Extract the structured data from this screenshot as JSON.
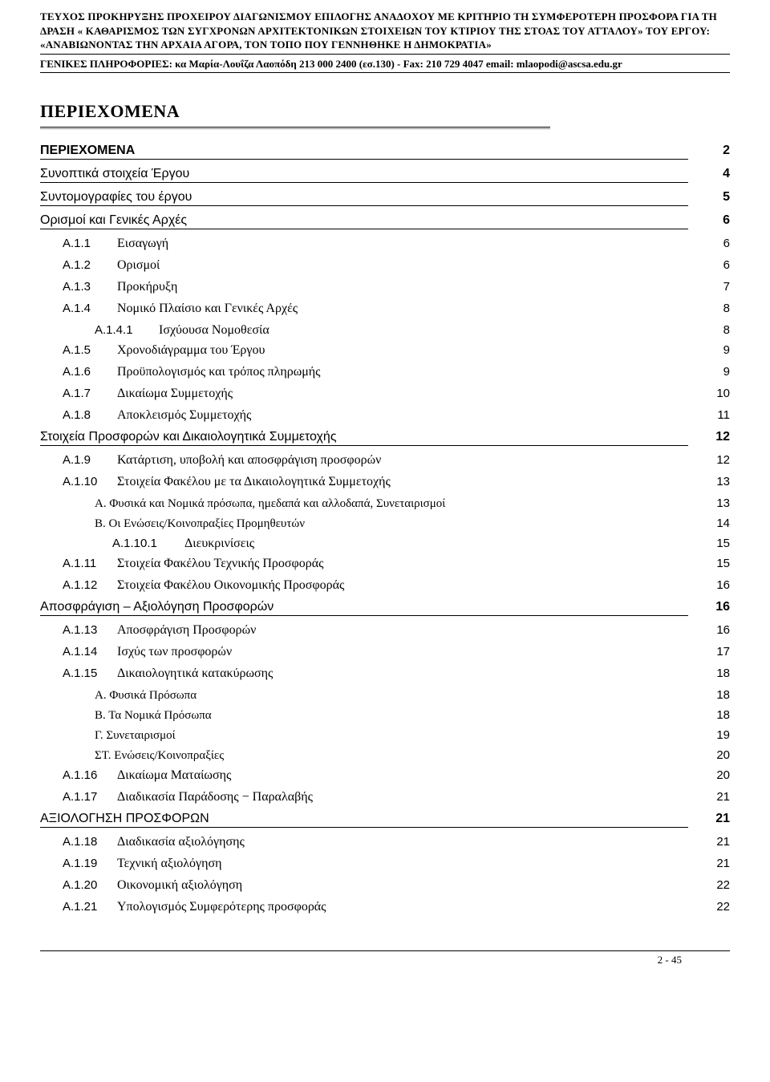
{
  "header": {
    "line1": "ΤΕΥΧΟΣ ΠΡΟΚΗΡΥΞΗΣ ΠΡΟΧΕΙΡΟΥ ΔΙΑΓΩΝΙΣΜΟΥ ΕΠΙΛΟΓΗΣ ΑΝΑΔΟΧΟΥ ΜΕ ΚΡΙΤΗΡΙΟ ΤΗ ΣΥΜΦΕΡΟΤΕΡΗ ΠΡΟΣΦΟΡΑ ΓΙΑ ΤΗ ΔΡΑΣΗ « ΚΑΘΑΡΙΣΜΟΣ ΤΩΝ ΣΥΓΧΡΟΝΩΝ ΑΡΧΙΤΕΚΤΟΝΙΚΩΝ ΣΤΟΙΧΕΙΩΝ  ΤΟΥ ΚΤΙΡΙΟΥ ΤΗΣ ΣΤΟΑΣ ΤΟΥ ΑΤΤΑΛΟΥ» ΤΟΥ ΕΡΓΟΥ:  «ΑΝΑΒΙΩΝΟΝΤΑΣ ΤΗΝ ΑΡΧΑΙΑ ΑΓΟΡΑ, ΤΟΝ ΤΟΠΟ ΠΟΥ ΓΕΝΝΗΘΗΚΕ Η ΔΗΜΟΚΡΑΤΙΑ»",
    "line2": "ΓΕΝΙΚΕΣ ΠΛΗΡΟΦΟΡΙΕΣ: κα Μαρία-Λουΐζα Λαοπόδη 213 000 2400 (εσ.130)  - Fax: 210 729 4047 email: mlaopodi@ascsa.edu.gr"
  },
  "title": "ΠΕΡΙΕΧΟΜΕΝΑ",
  "toc": [
    {
      "lvl": "lvl0 first",
      "num": "",
      "label": "ΠΕΡΙΕΧΟΜΕΝΑ",
      "page": "2"
    },
    {
      "lvl": "lvl0",
      "num": "",
      "label": "Συνοπτικά στοιχεία Έργου",
      "page": "4"
    },
    {
      "lvl": "lvl0",
      "num": "",
      "label": "Συντομογραφίες του έργου",
      "page": "5"
    },
    {
      "lvl": "lvl0",
      "num": "",
      "label": "Ορισμοί και Γενικές Αρχές",
      "page": "6"
    },
    {
      "lvl": "lvl1",
      "num": "Α.1.1",
      "label": "Εισαγωγή",
      "page": "6"
    },
    {
      "lvl": "lvl1",
      "num": "Α.1.2",
      "label": "Ορισμοί",
      "page": "6"
    },
    {
      "lvl": "lvl1",
      "num": "Α.1.3",
      "label": "Προκήρυξη",
      "page": "7"
    },
    {
      "lvl": "lvl1",
      "num": "Α.1.4",
      "label": "Νομικό Πλαίσιο και Γενικές Αρχές",
      "page": "8"
    },
    {
      "lvl": "lvl2",
      "num": "Α.1.4.1",
      "label": "Ισχύουσα Νομοθεσία",
      "page": "8"
    },
    {
      "lvl": "lvl1",
      "num": "Α.1.5",
      "label": "Χρονοδιάγραμμα του Έργου",
      "page": "9"
    },
    {
      "lvl": "lvl1",
      "num": "Α.1.6",
      "label": "Προϋπολογισμός και τρόπος πληρωμής",
      "page": "9"
    },
    {
      "lvl": "lvl1",
      "num": "Α.1.7",
      "label": "Δικαίωμα Συμμετοχής",
      "page": "10"
    },
    {
      "lvl": "lvl1",
      "num": "Α.1.8",
      "label": "Αποκλεισμός Συμμετοχής",
      "page": "11"
    },
    {
      "lvl": "lvl0",
      "num": "",
      "label": "Στοιχεία Προσφορών και Δικαιολογητικά Συμμετοχής",
      "page": "12"
    },
    {
      "lvl": "lvl1",
      "num": "Α.1.9",
      "label": "Κατάρτιση, υποβολή και αποσφράγιση προσφορών",
      "page": "12"
    },
    {
      "lvl": "lvl1",
      "num": "Α.1.10",
      "label": "Στοιχεία Φακέλου με τα Δικαιολογητικά Συμμετοχής",
      "page": "13"
    },
    {
      "lvl": "lvl2b",
      "num": "",
      "label": "Α. Φυσικά και Νομικά πρόσωπα, ημεδαπά και αλλοδαπά, Συνεταιρισμοί",
      "page": "13"
    },
    {
      "lvl": "lvl2b",
      "num": "",
      "label": "Β. Οι Ενώσεις/Κοινοπραξίες Προμηθευτών",
      "page": "14"
    },
    {
      "lvl": "lvl3",
      "num": "Α.1.10.1",
      "label": "Διευκρινίσεις",
      "page": "15"
    },
    {
      "lvl": "lvl1",
      "num": "Α.1.11",
      "label": "Στοιχεία Φακέλου Τεχνικής Προσφοράς",
      "page": "15"
    },
    {
      "lvl": "lvl1",
      "num": "Α.1.12",
      "label": "Στοιχεία Φακέλου Οικονομικής Προσφοράς",
      "page": "16"
    },
    {
      "lvl": "lvl0",
      "num": "",
      "label": "Αποσφράγιση – Αξιολόγηση Προσφορών",
      "page": "16"
    },
    {
      "lvl": "lvl1",
      "num": "Α.1.13",
      "label": "Αποσφράγιση Προσφορών",
      "page": "16"
    },
    {
      "lvl": "lvl1",
      "num": "Α.1.14",
      "label": "Ισχύς των προσφορών",
      "page": "17"
    },
    {
      "lvl": "lvl1",
      "num": "Α.1.15",
      "label": "Δικαιολογητικά κατακύρωσης",
      "page": "18"
    },
    {
      "lvl": "lvl2b",
      "num": "",
      "label": "Α. Φυσικά Πρόσωπα",
      "page": "18"
    },
    {
      "lvl": "lvl2b",
      "num": "",
      "label": "Β. Τα Νομικά Πρόσωπα",
      "page": "18"
    },
    {
      "lvl": "lvl2b",
      "num": "",
      "label": "Γ. Συνεταιρισμοί",
      "page": "19"
    },
    {
      "lvl": "lvl2b",
      "num": "",
      "label": "ΣΤ. Ενώσεις/Κοινοπραξίες",
      "page": "20"
    },
    {
      "lvl": "lvl1",
      "num": "Α.1.16",
      "label": "Δικαίωμα Ματαίωσης",
      "page": "20"
    },
    {
      "lvl": "lvl1",
      "num": "Α.1.17",
      "label": "Διαδικασία Παράδοσης − Παραλαβής",
      "page": "21"
    },
    {
      "lvl": "lvl0",
      "num": "",
      "label": "ΑΞΙΟΛΟΓΗΣΗ ΠΡΟΣΦΟΡΩΝ",
      "page": "21"
    },
    {
      "lvl": "lvl1",
      "num": "Α.1.18",
      "label": "Διαδικασία αξιολόγησης",
      "page": "21"
    },
    {
      "lvl": "lvl1",
      "num": "Α.1.19",
      "label": "Τεχνική αξιολόγηση",
      "page": "21"
    },
    {
      "lvl": "lvl1",
      "num": "Α.1.20",
      "label": "Οικονομική αξιολόγηση",
      "page": "22"
    },
    {
      "lvl": "lvl1",
      "num": "Α.1.21",
      "label": "Υπολογισμός Συμφερότερης προσφοράς",
      "page": "22"
    }
  ],
  "footer": "2 - 45"
}
